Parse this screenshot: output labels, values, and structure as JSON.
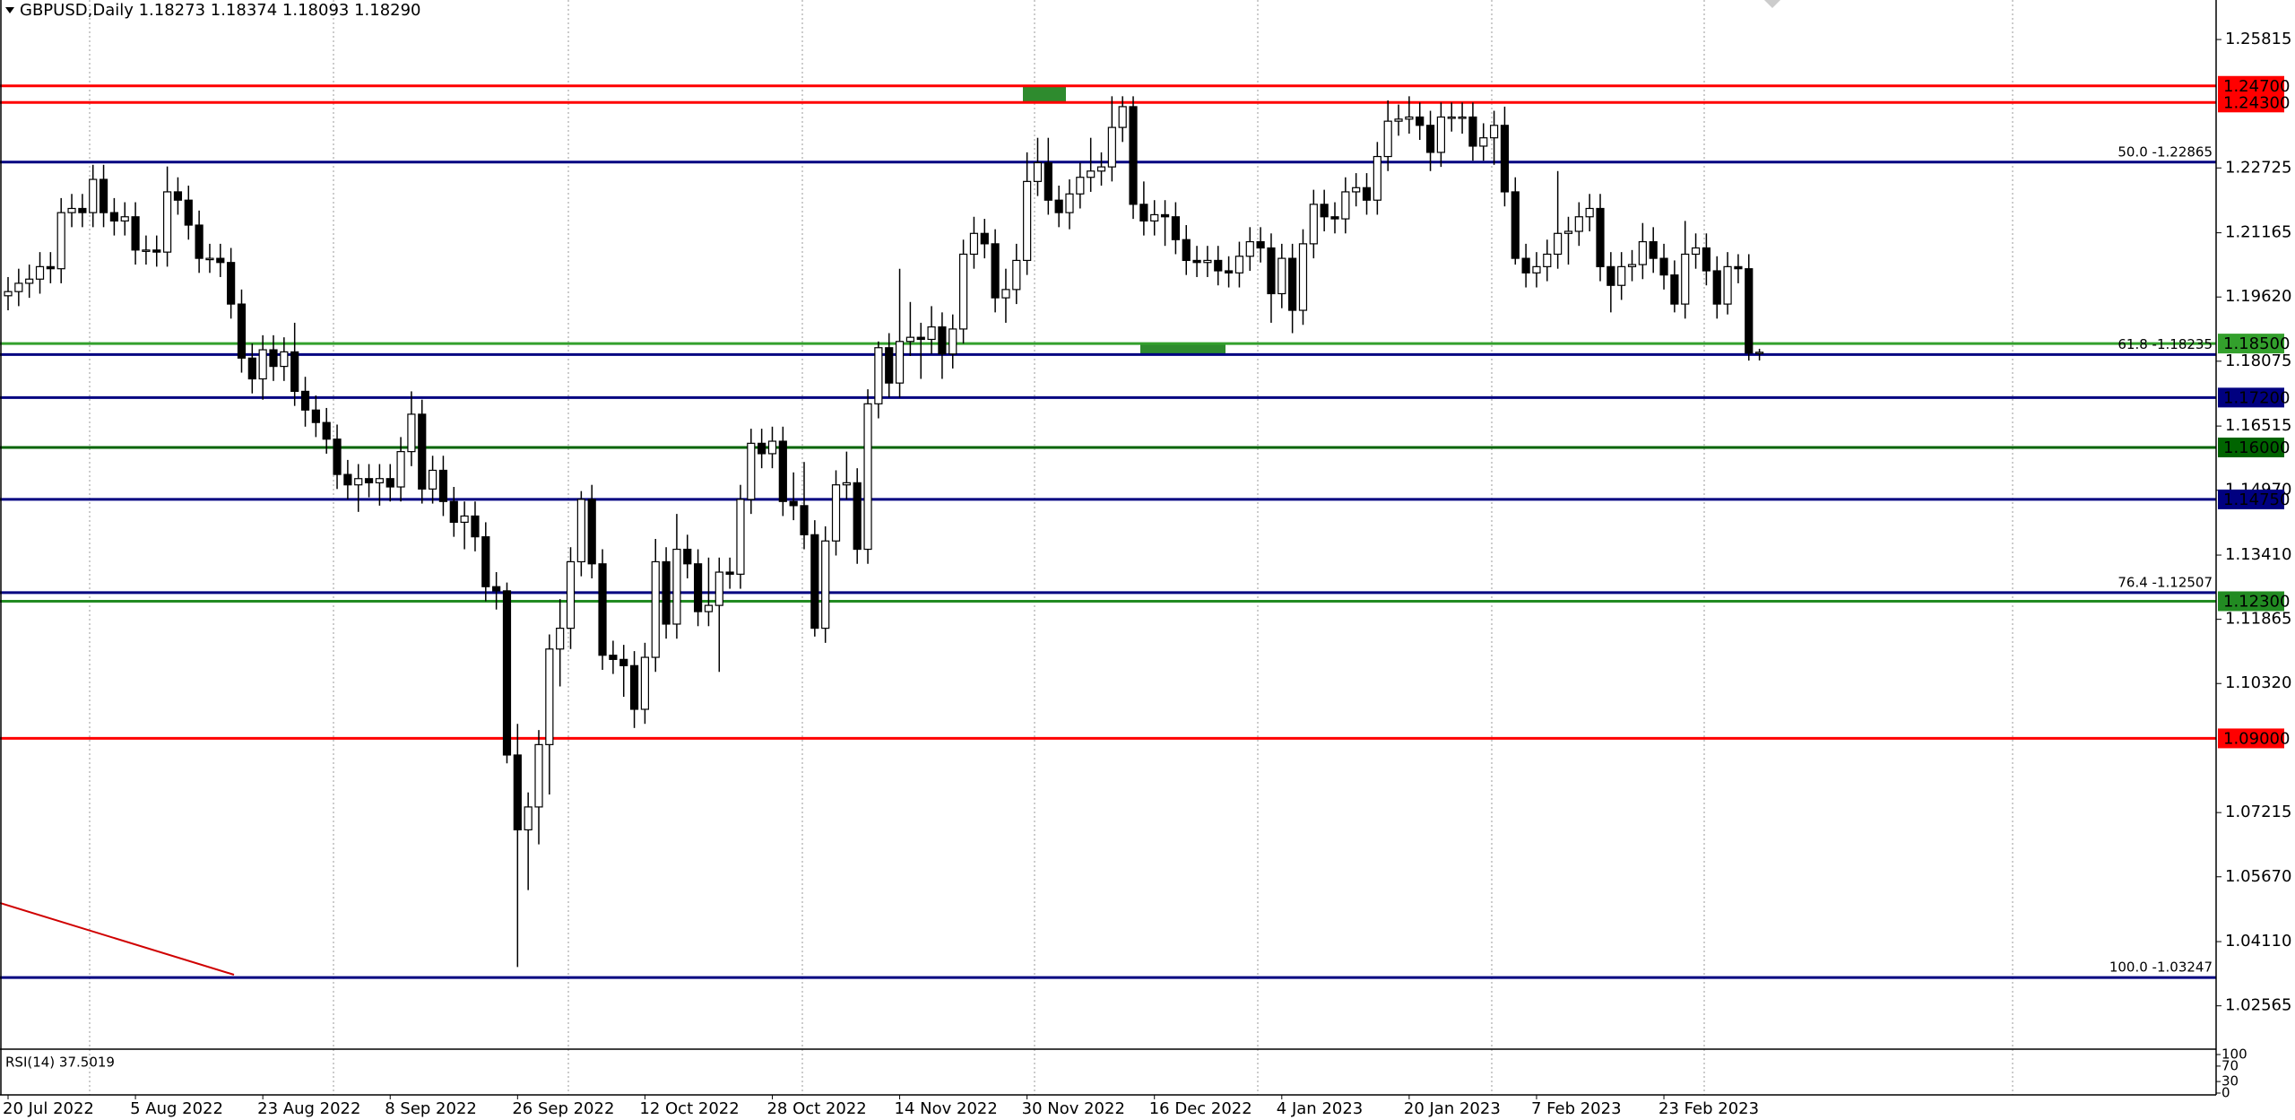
{
  "chart_data": {
    "type": "candlestick",
    "title": "GBPUSD,Daily 1.18273 1.18374 1.18093 1.18290",
    "categories": [
      "20 Jul 2022",
      null,
      null,
      null,
      null,
      null,
      null,
      null,
      null,
      null,
      null,
      null,
      "5 Aug 2022",
      null,
      null,
      null,
      null,
      null,
      null,
      null,
      null,
      null,
      null,
      null,
      "23 Aug 2022",
      null,
      null,
      null,
      null,
      null,
      null,
      null,
      null,
      null,
      null,
      null,
      "8 Sep 2022",
      null,
      null,
      null,
      null,
      null,
      null,
      null,
      null,
      null,
      null,
      null,
      "26 Sep 2022",
      null,
      null,
      null,
      null,
      null,
      null,
      null,
      null,
      null,
      null,
      null,
      "12 Oct 2022",
      null,
      null,
      null,
      null,
      null,
      null,
      null,
      null,
      null,
      null,
      null,
      "28 Oct 2022",
      null,
      null,
      null,
      null,
      null,
      null,
      null,
      null,
      null,
      null,
      null,
      "14 Nov 2022",
      null,
      null,
      null,
      null,
      null,
      null,
      null,
      null,
      null,
      null,
      null,
      "30 Nov 2022",
      null,
      null,
      null,
      null,
      null,
      null,
      null,
      null,
      null,
      null,
      null,
      "16 Dec 2022",
      null,
      null,
      null,
      null,
      null,
      null,
      null,
      null,
      null,
      null,
      null,
      "4 Jan 2023",
      null,
      null,
      null,
      null,
      null,
      null,
      null,
      null,
      null,
      null,
      null,
      "20 Jan 2023",
      null,
      null,
      null,
      null,
      null,
      null,
      null,
      null,
      null,
      null,
      null,
      "7 Feb 2023",
      null,
      null,
      null,
      null,
      null,
      null,
      null,
      null,
      null,
      null,
      null,
      "23 Feb 2023",
      null,
      null,
      null,
      null,
      null,
      null,
      null,
      null,
      null
    ],
    "open": [
      1.1965,
      1.1975,
      1.1995,
      1.2005,
      1.2035,
      1.203,
      1.2165,
      1.2175,
      1.2165,
      1.2245,
      1.2165,
      1.2145,
      1.2155,
      1.2075,
      1.2075,
      1.207,
      1.2215,
      1.2195,
      1.2135,
      1.2055,
      1.2055,
      1.2045,
      1.1945,
      1.1815,
      1.1765,
      1.1835,
      1.1795,
      1.183,
      1.1735,
      1.169,
      1.166,
      1.162,
      1.1535,
      1.151,
      1.1525,
      1.1515,
      1.1525,
      1.1505,
      1.159,
      1.168,
      1.15,
      1.1545,
      1.147,
      1.142,
      1.1435,
      1.1385,
      1.1265,
      1.1255,
      1.086,
      1.068,
      1.0735,
      1.0885,
      1.1115,
      1.1165,
      1.1325,
      1.1475,
      1.132,
      1.11,
      1.109,
      1.1075,
      1.097,
      1.1095,
      1.1325,
      1.1175,
      1.1355,
      1.132,
      1.1205,
      1.122,
      1.13,
      1.1295,
      1.1475,
      1.161,
      1.1585,
      1.1615,
      1.147,
      1.146,
      1.139,
      1.1165,
      1.1375,
      1.151,
      1.1515,
      1.1355,
      1.1705,
      1.184,
      1.1755,
      1.1855,
      1.1865,
      1.186,
      1.189,
      1.1825,
      1.1885,
      1.2065,
      1.2115,
      1.209,
      1.196,
      1.198,
      1.205,
      1.224,
      1.2285,
      1.2195,
      1.2165,
      1.221,
      1.225,
      1.2265,
      1.2275,
      1.237,
      1.242,
      1.2185,
      1.2145,
      1.216,
      1.2155,
      1.21,
      1.205,
      1.2045,
      1.205,
      1.2025,
      1.202,
      1.206,
      1.2095,
      1.208,
      1.197,
      1.2055,
      1.193,
      1.209,
      1.2185,
      1.2155,
      1.215,
      1.2215,
      1.2225,
      1.2195,
      1.23,
      1.2385,
      1.239,
      1.2395,
      1.2375,
      1.231,
      1.2395,
      1.2395,
      1.2395,
      1.2325,
      1.2345,
      1.2375,
      1.2215,
      1.2055,
      1.202,
      1.2035,
      1.2065,
      1.2115,
      1.212,
      1.2155,
      1.2175,
      1.2035,
      1.199,
      1.2035,
      1.204,
      1.2095,
      1.2055,
      1.2015,
      1.1945,
      1.2065,
      1.208,
      1.2025,
      1.1945,
      1.2035,
      1.203,
      1.18273
    ],
    "high": [
      1.201,
      1.203,
      1.204,
      1.207,
      1.207,
      1.22,
      1.221,
      1.221,
      1.228,
      1.228,
      1.22,
      1.219,
      1.219,
      1.211,
      1.211,
      1.2276,
      1.225,
      1.223,
      1.217,
      1.209,
      1.209,
      1.208,
      1.198,
      1.185,
      1.187,
      1.187,
      1.1865,
      1.19,
      1.177,
      1.1725,
      1.1695,
      1.1655,
      1.157,
      1.156,
      1.156,
      1.156,
      1.156,
      1.1625,
      1.1735,
      1.1715,
      1.158,
      1.158,
      1.1505,
      1.147,
      1.147,
      1.142,
      1.13,
      1.1275,
      1.0935,
      1.077,
      1.092,
      1.115,
      1.1235,
      1.136,
      1.1495,
      1.151,
      1.1355,
      1.1135,
      1.1125,
      1.111,
      1.113,
      1.138,
      1.136,
      1.144,
      1.139,
      1.1355,
      1.1335,
      1.1335,
      1.1335,
      1.151,
      1.1645,
      1.1645,
      1.165,
      1.165,
      1.154,
      1.1565,
      1.1425,
      1.141,
      1.1545,
      1.159,
      1.155,
      1.174,
      1.1855,
      1.1875,
      1.203,
      1.195,
      1.19,
      1.194,
      1.1925,
      1.192,
      1.21,
      1.2155,
      1.215,
      1.2125,
      1.203,
      1.209,
      1.231,
      1.2345,
      1.2345,
      1.223,
      1.2245,
      1.2285,
      1.2345,
      1.231,
      1.2445,
      1.2445,
      1.2445,
      1.224,
      1.2195,
      1.2195,
      1.219,
      1.2135,
      1.2085,
      1.2085,
      1.2085,
      1.206,
      1.2095,
      1.213,
      1.213,
      1.2115,
      1.209,
      1.209,
      1.2125,
      1.222,
      1.222,
      1.219,
      1.225,
      1.226,
      1.226,
      1.2335,
      1.2435,
      1.2425,
      1.2445,
      1.243,
      1.241,
      1.243,
      1.243,
      1.243,
      1.243,
      1.238,
      1.241,
      1.242,
      1.225,
      1.209,
      1.207,
      1.21,
      1.2265,
      1.2155,
      1.219,
      1.221,
      1.221,
      1.207,
      1.207,
      1.2075,
      1.214,
      1.213,
      1.209,
      1.205,
      1.2145,
      1.2115,
      1.2115,
      1.206,
      1.207,
      1.2065,
      1.2065,
      1.18374
    ],
    "low": [
      1.193,
      1.194,
      1.196,
      1.197,
      1.1995,
      1.1995,
      1.213,
      1.213,
      1.213,
      1.213,
      1.211,
      1.211,
      1.204,
      1.204,
      1.2035,
      1.2035,
      1.216,
      1.21,
      1.202,
      1.202,
      1.201,
      1.191,
      1.178,
      1.173,
      1.1715,
      1.176,
      1.176,
      1.17,
      1.165,
      1.1625,
      1.1585,
      1.15,
      1.1475,
      1.1445,
      1.148,
      1.146,
      1.147,
      1.147,
      1.1555,
      1.1465,
      1.1465,
      1.1435,
      1.1385,
      1.1355,
      1.135,
      1.123,
      1.121,
      1.084,
      1.035,
      1.0535,
      1.0645,
      1.0765,
      1.1025,
      1.1115,
      1.129,
      1.1285,
      1.1065,
      1.1055,
      1.1,
      1.0925,
      1.0935,
      1.106,
      1.114,
      1.114,
      1.1285,
      1.117,
      1.117,
      1.106,
      1.126,
      1.126,
      1.144,
      1.155,
      1.155,
      1.1435,
      1.1425,
      1.1355,
      1.1145,
      1.113,
      1.134,
      1.1475,
      1.132,
      1.132,
      1.167,
      1.172,
      1.172,
      1.182,
      1.1765,
      1.1825,
      1.1765,
      1.179,
      1.185,
      1.203,
      1.2055,
      1.1925,
      1.19,
      1.1945,
      1.2015,
      1.2205,
      1.216,
      1.213,
      1.2125,
      1.2175,
      1.2215,
      1.223,
      1.224,
      1.2335,
      1.215,
      1.211,
      1.211,
      1.2085,
      1.2065,
      1.2015,
      1.201,
      1.201,
      1.199,
      1.1985,
      1.1985,
      1.2025,
      1.2045,
      1.19,
      1.1935,
      1.1875,
      1.1895,
      1.2055,
      1.212,
      1.2115,
      1.2115,
      1.218,
      1.216,
      1.216,
      1.2265,
      1.235,
      1.2355,
      1.234,
      1.2265,
      1.2275,
      1.236,
      1.2355,
      1.229,
      1.229,
      1.228,
      1.218,
      1.204,
      1.1985,
      1.1985,
      1.2,
      1.203,
      1.204,
      1.2085,
      1.212,
      1.2,
      1.1925,
      1.1955,
      1.2,
      1.2005,
      1.202,
      1.198,
      1.1925,
      1.191,
      1.203,
      1.199,
      1.191,
      1.192,
      1.1995,
      1.1809,
      1.18093
    ],
    "close": [
      1.1975,
      1.1995,
      1.2005,
      1.2035,
      1.203,
      1.2165,
      1.2175,
      1.2165,
      1.2245,
      1.2165,
      1.2145,
      1.2155,
      1.2075,
      1.2075,
      1.207,
      1.2215,
      1.2195,
      1.2135,
      1.2055,
      1.2055,
      1.2045,
      1.1945,
      1.1815,
      1.1765,
      1.1835,
      1.1795,
      1.183,
      1.1735,
      1.169,
      1.166,
      1.162,
      1.1535,
      1.151,
      1.1525,
      1.1515,
      1.1525,
      1.1505,
      1.159,
      1.168,
      1.15,
      1.1545,
      1.147,
      1.142,
      1.1435,
      1.1385,
      1.1265,
      1.1255,
      1.086,
      1.068,
      1.0735,
      1.0885,
      1.1115,
      1.1165,
      1.1325,
      1.1475,
      1.132,
      1.11,
      1.109,
      1.1075,
      1.097,
      1.1095,
      1.1325,
      1.1175,
      1.1355,
      1.132,
      1.1205,
      1.122,
      1.13,
      1.1295,
      1.1475,
      1.161,
      1.1585,
      1.1615,
      1.147,
      1.146,
      1.139,
      1.1165,
      1.1375,
      1.151,
      1.1515,
      1.1355,
      1.1705,
      1.184,
      1.1755,
      1.1855,
      1.1865,
      1.186,
      1.189,
      1.1825,
      1.1885,
      1.2065,
      1.2115,
      1.209,
      1.196,
      1.198,
      1.205,
      1.224,
      1.2285,
      1.2195,
      1.2165,
      1.221,
      1.225,
      1.2265,
      1.2275,
      1.237,
      1.242,
      1.2185,
      1.2145,
      1.216,
      1.2155,
      1.21,
      1.205,
      1.2045,
      1.205,
      1.2025,
      1.202,
      1.206,
      1.2095,
      1.208,
      1.197,
      1.2055,
      1.193,
      1.209,
      1.2185,
      1.2155,
      1.215,
      1.2215,
      1.2225,
      1.2195,
      1.23,
      1.2385,
      1.239,
      1.2395,
      1.2375,
      1.231,
      1.2395,
      1.2395,
      1.2395,
      1.2325,
      1.2345,
      1.2375,
      1.2215,
      1.2055,
      1.202,
      1.2035,
      1.2065,
      1.2115,
      1.212,
      1.2155,
      1.2175,
      1.2035,
      1.199,
      1.2035,
      1.204,
      1.2095,
      1.2055,
      1.2015,
      1.1945,
      1.2065,
      1.208,
      1.2025,
      1.1945,
      1.2035,
      1.203,
      1.1827,
      1.1829
    ],
    "up_color": "#ffffff",
    "down_color": "#000000",
    "ylim": [
      1.01544,
      1.26766
    ],
    "yticks": [
      1.25815,
      1.22725,
      1.21165,
      {
        "value": 1.1962,
        "label": "1.19620"
      },
      1.18075,
      1.16515,
      {
        "value": 1.1497,
        "label": "1.14970"
      },
      {
        "value": 1.1341,
        "label": "1.13410"
      },
      1.11865,
      {
        "value": 1.1032,
        "label": "1.10320"
      },
      1.07215,
      {
        "value": 1.0567,
        "label": "1.05670"
      },
      {
        "value": 1.0411,
        "label": "1.04110"
      },
      1.02565
    ],
    "price_levels": [
      {
        "value": 1.247,
        "label": "1.24700",
        "color": "#ff0000"
      },
      {
        "value": 1.243,
        "label": "1.24300",
        "color": "#ff0000"
      },
      {
        "value": 1.185,
        "label": "1.18500",
        "color": "#33a02c"
      },
      {
        "value": 1.172,
        "label": "1.17200",
        "color": "#000080"
      },
      {
        "value": 1.16,
        "label": "1.16000",
        "color": "#006400"
      },
      {
        "value": 1.1475,
        "label": "1.14750",
        "color": "#000080"
      },
      {
        "value": 1.123,
        "label": "1.12300",
        "color": "#228b22"
      },
      {
        "value": 1.09,
        "label": "1.09000",
        "color": "#ff0000"
      }
    ],
    "fib_levels": [
      {
        "value": 1.22865,
        "label": "50.0 -1.22865",
        "color": "#000080"
      },
      {
        "value": 1.18235,
        "label": "61.8 -1.18235",
        "color": "#000080"
      },
      {
        "value": 1.12507,
        "label": "76.4 -1.12507",
        "color": "#000080"
      },
      {
        "value": 1.03247,
        "label": "100.0 -1.03247",
        "color": "#000080"
      }
    ],
    "indicator": {
      "title": "RSI(14) 37.5019",
      "ylim": [
        0,
        100
      ],
      "yticks": [
        100,
        70,
        30,
        0
      ]
    }
  }
}
